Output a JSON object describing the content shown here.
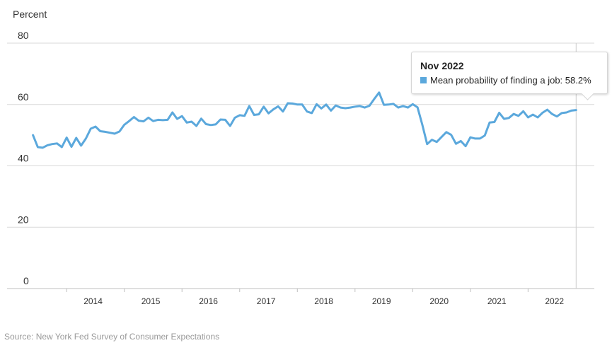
{
  "chart_data": {
    "type": "line",
    "ylabel": "Percent",
    "ylim": [
      0,
      80
    ],
    "y_ticks": [
      "0",
      "20",
      "40",
      "60",
      "80"
    ],
    "x_ticks": [
      "2014",
      "2015",
      "2016",
      "2017",
      "2018",
      "2019",
      "2020",
      "2021",
      "2022"
    ],
    "grid": "horizontal",
    "series": [
      {
        "name": "Mean probability of finding a job",
        "color": "#5ba8dc",
        "x": [
          "2013-06",
          "2013-07",
          "2013-08",
          "2013-09",
          "2013-10",
          "2013-11",
          "2013-12",
          "2014-01",
          "2014-02",
          "2014-03",
          "2014-04",
          "2014-05",
          "2014-06",
          "2014-07",
          "2014-08",
          "2014-09",
          "2014-10",
          "2014-11",
          "2014-12",
          "2015-01",
          "2015-02",
          "2015-03",
          "2015-04",
          "2015-05",
          "2015-06",
          "2015-07",
          "2015-08",
          "2015-09",
          "2015-10",
          "2015-11",
          "2015-12",
          "2016-01",
          "2016-02",
          "2016-03",
          "2016-04",
          "2016-05",
          "2016-06",
          "2016-07",
          "2016-08",
          "2016-09",
          "2016-10",
          "2016-11",
          "2016-12",
          "2017-01",
          "2017-02",
          "2017-03",
          "2017-04",
          "2017-05",
          "2017-06",
          "2017-07",
          "2017-08",
          "2017-09",
          "2017-10",
          "2017-11",
          "2017-12",
          "2018-01",
          "2018-02",
          "2018-03",
          "2018-04",
          "2018-05",
          "2018-06",
          "2018-07",
          "2018-08",
          "2018-09",
          "2018-10",
          "2018-11",
          "2018-12",
          "2019-01",
          "2019-02",
          "2019-03",
          "2019-04",
          "2019-05",
          "2019-06",
          "2019-07",
          "2019-08",
          "2019-09",
          "2019-10",
          "2019-11",
          "2019-12",
          "2020-01",
          "2020-02",
          "2020-03",
          "2020-04",
          "2020-05",
          "2020-06",
          "2020-07",
          "2020-08",
          "2020-09",
          "2020-10",
          "2020-11",
          "2020-12",
          "2021-01",
          "2021-02",
          "2021-03",
          "2021-04",
          "2021-05",
          "2021-06",
          "2021-07",
          "2021-08",
          "2021-09",
          "2021-10",
          "2021-11",
          "2021-12",
          "2022-01",
          "2022-02",
          "2022-03",
          "2022-04",
          "2022-05",
          "2022-06",
          "2022-07",
          "2022-08",
          "2022-09",
          "2022-10",
          "2022-11"
        ],
        "values": [
          50.0,
          46.1,
          45.9,
          46.7,
          47.1,
          47.3,
          46.1,
          49.2,
          46.2,
          49.1,
          46.6,
          48.9,
          52.1,
          52.8,
          51.3,
          51.1,
          50.8,
          50.5,
          51.2,
          53.4,
          54.6,
          55.9,
          54.7,
          54.5,
          55.7,
          54.6,
          55.0,
          54.9,
          55.0,
          57.4,
          55.3,
          56.2,
          54.1,
          54.4,
          53.0,
          55.4,
          53.6,
          53.3,
          53.5,
          55.1,
          55.0,
          53.0,
          55.7,
          56.5,
          56.3,
          59.5,
          56.6,
          56.8,
          59.3,
          57.1,
          58.4,
          59.4,
          57.7,
          60.4,
          60.3,
          60.0,
          60.0,
          57.7,
          57.2,
          60.1,
          58.7,
          60.0,
          58.0,
          59.7,
          59.0,
          58.8,
          59.0,
          59.3,
          59.5,
          59.0,
          59.6,
          61.8,
          63.9,
          59.9,
          60.0,
          60.2,
          59.0,
          59.5,
          59.0,
          60.1,
          59.1,
          53.4,
          47.1,
          48.5,
          47.8,
          49.4,
          51.0,
          50.1,
          47.2,
          48.1,
          46.4,
          49.3,
          48.9,
          48.9,
          49.9,
          54.1,
          54.3,
          57.3,
          55.3,
          55.6,
          56.9,
          56.3,
          57.8,
          55.8,
          56.7,
          55.8,
          57.3,
          58.3,
          56.9,
          56.1,
          57.2,
          57.4,
          58.0,
          58.2
        ]
      }
    ]
  },
  "tooltip": {
    "title": "Nov 2022",
    "label": "Mean probability of finding a job: 58.2%"
  },
  "source": "Source: New York Fed Survey of Consumer Expectations"
}
